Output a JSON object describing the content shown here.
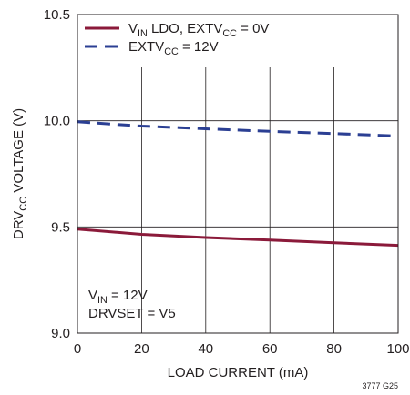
{
  "chart_data": {
    "type": "line",
    "title": "",
    "xlabel": "LOAD CURRENT (mA)",
    "ylabel": {
      "base": "DRV",
      "sub": "CC",
      "rest": " VOLTAGE (V)"
    },
    "xlim": [
      0,
      100
    ],
    "ylim": [
      9.0,
      10.5
    ],
    "x_ticks": [
      0,
      20,
      40,
      60,
      80,
      100
    ],
    "y_ticks": [
      9.0,
      9.5,
      10.0,
      10.5
    ],
    "y_tick_labels": [
      "9.0",
      "9.5",
      "10.0",
      "10.5"
    ],
    "grid": true,
    "legend_position": "top-left",
    "series": [
      {
        "legend": {
          "pre": "V",
          "sub1": "IN",
          "mid": " LDO, EXTV",
          "sub2": "CC",
          "post": " = 0V"
        },
        "color": "#8b1a3a",
        "dash": "solid",
        "x": [
          0,
          20,
          40,
          60,
          80,
          100
        ],
        "y": [
          9.49,
          9.465,
          9.45,
          9.438,
          9.425,
          9.413
        ]
      },
      {
        "legend": {
          "pre": "EXTV",
          "sub1": "CC",
          "mid": " = 12V",
          "sub2": "",
          "post": ""
        },
        "color": "#2b3f93",
        "dash": "dashed",
        "x": [
          0,
          20,
          40,
          60,
          80,
          100
        ],
        "y": [
          9.995,
          9.975,
          9.962,
          9.95,
          9.94,
          9.928
        ]
      }
    ],
    "annotations": [
      {
        "pre": "V",
        "sub": "IN",
        "post": " = 12V"
      },
      {
        "pre": "DRVSET = V5",
        "sub": "",
        "post": ""
      }
    ],
    "footnote": "3777 G25"
  }
}
